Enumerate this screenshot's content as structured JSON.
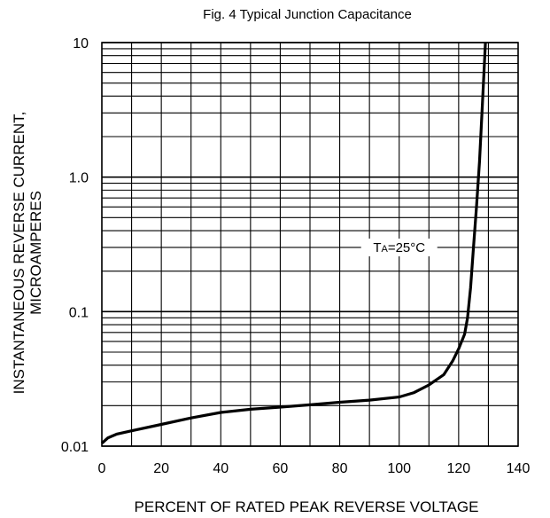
{
  "chart_data": {
    "type": "line",
    "title": "Fig. 4   Typical Junction Capacitance",
    "xlabel": "PERCENT OF RATED PEAK REVERSE VOLTAGE",
    "ylabel_line1": "INSTANTANEOUS REVERSE CURRENT,",
    "ylabel_line2": "MICROAMPERES",
    "xlim": [
      0,
      140
    ],
    "ylim": [
      0.01,
      10
    ],
    "yscale": "log",
    "grid": true,
    "x_ticks": [
      0,
      20,
      40,
      60,
      80,
      100,
      120,
      140
    ],
    "x_tick_labels": [
      "0",
      "20",
      "40",
      "60",
      "80",
      "100",
      "120",
      "140"
    ],
    "y_ticks": [
      0.01,
      0.1,
      1.0,
      10
    ],
    "y_tick_labels": [
      "0.01",
      "0.1",
      "1.0",
      "10"
    ],
    "annotation": {
      "text_main": "T",
      "text_sub": "A",
      "text_rest": "=25°C",
      "x": 100,
      "y": 0.3
    },
    "series": [
      {
        "x": [
          0,
          2,
          5,
          10,
          20,
          30,
          40,
          50,
          60,
          70,
          80,
          90,
          100,
          105,
          110,
          115,
          118,
          120,
          122,
          123,
          124,
          125,
          126,
          127,
          128,
          129
        ],
        "y": [
          0.0105,
          0.0115,
          0.0123,
          0.013,
          0.0145,
          0.0162,
          0.0178,
          0.0188,
          0.0195,
          0.0203,
          0.0212,
          0.022,
          0.0232,
          0.025,
          0.0285,
          0.034,
          0.043,
          0.053,
          0.068,
          0.09,
          0.15,
          0.3,
          0.6,
          1.3,
          3.5,
          10
        ]
      }
    ]
  }
}
